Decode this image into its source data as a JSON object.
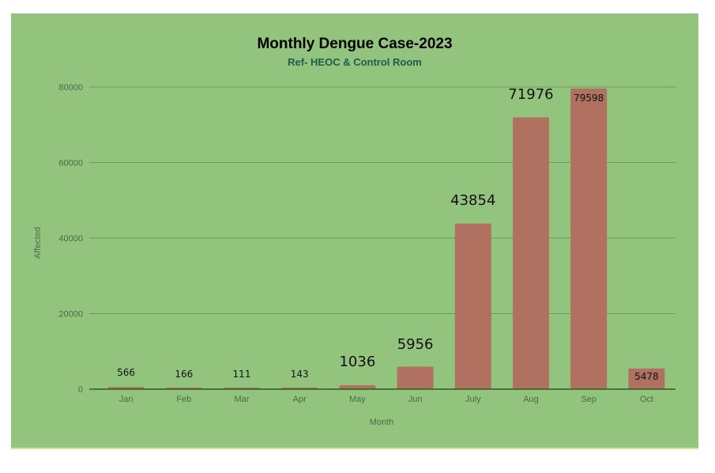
{
  "chart_data": {
    "type": "bar",
    "title": "Monthly Dengue Case-2023",
    "subtitle": "Ref- HEOC & Control Room",
    "xlabel": "Month",
    "ylabel": "Affected",
    "categories": [
      "Jan",
      "Feb",
      "Mar",
      "Apr",
      "May",
      "Jun",
      "July",
      "Aug",
      "Sep",
      "Oct"
    ],
    "values": [
      566,
      166,
      111,
      143,
      1036,
      5956,
      43854,
      71976,
      79598,
      5478
    ],
    "data_labels": [
      "566",
      "166",
      "111",
      "143",
      "1036",
      "5956",
      "43854",
      "71976",
      "79598",
      "5478"
    ],
    "ylim": [
      0,
      80000
    ],
    "yticks": [
      0,
      20000,
      40000,
      60000,
      80000
    ],
    "ytick_labels": [
      "0",
      "20000",
      "40000",
      "60000",
      "80000"
    ],
    "grid": true,
    "legend": "none",
    "colors": {
      "background": "#93c47d",
      "bar": "#b07160",
      "gridline": "#6f9a5c",
      "baseline": "#2e5a23",
      "title": "#000000",
      "subtitle": "#1f5b4e",
      "axis_text": "#4a6b48",
      "data_label": "#111111"
    }
  }
}
